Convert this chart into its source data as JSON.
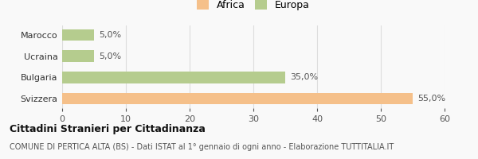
{
  "categories": [
    "Marocco",
    "Ucraina",
    "Bulgaria",
    "Svizzera"
  ],
  "values": [
    55.0,
    35.0,
    5.0,
    5.0
  ],
  "colors": [
    "#f5c08a",
    "#b5cc8e",
    "#b5cc8e",
    "#b5cc8e"
  ],
  "legend_labels": [
    "Africa",
    "Europa"
  ],
  "legend_colors": [
    "#f5c08a",
    "#b5cc8e"
  ],
  "bar_labels": [
    "55,0%",
    "35,0%",
    "5,0%",
    "5,0%"
  ],
  "xlim": [
    0,
    60
  ],
  "xticks": [
    0,
    10,
    20,
    30,
    40,
    50,
    60
  ],
  "title": "Cittadini Stranieri per Cittadinanza",
  "subtitle": "COMUNE DI PERTICA ALTA (BS) - Dati ISTAT al 1° gennaio di ogni anno - Elaborazione TUTTITALIA.IT",
  "title_fontsize": 9,
  "subtitle_fontsize": 7,
  "label_fontsize": 8,
  "tick_fontsize": 8,
  "legend_fontsize": 9,
  "background_color": "#f9f9f9",
  "grid_color": "#dddddd"
}
